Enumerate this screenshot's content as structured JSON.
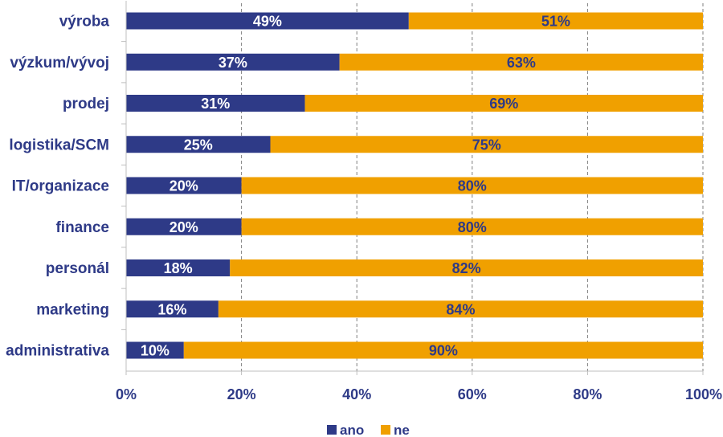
{
  "colors": {
    "ano": "#2E3A87",
    "ne": "#F0A000",
    "text": "#2E3A87",
    "grid": "#7f7f7f",
    "axis": "#bfbfbf",
    "label_on_dark": "#ffffff",
    "label_on_light": "#2E3A87"
  },
  "chart_data": {
    "type": "bar",
    "orientation": "horizontal",
    "stacked": true,
    "categories": [
      "výroba",
      "výzkum/vývoj",
      "prodej",
      "logistika/SCM",
      "IT/organizace",
      "finance",
      "personál",
      "marketing",
      "administrativa"
    ],
    "series": [
      {
        "name": "ano",
        "values": [
          49,
          37,
          31,
          25,
          20,
          20,
          18,
          16,
          10
        ],
        "labels": [
          "49%",
          "37%",
          "31%",
          "25%",
          "20%",
          "20%",
          "18%",
          "16%",
          "10%"
        ]
      },
      {
        "name": "ne",
        "values": [
          51,
          63,
          69,
          75,
          80,
          80,
          82,
          84,
          90
        ],
        "labels": [
          "51%",
          "63%",
          "69%",
          "75%",
          "80%",
          "80%",
          "82%",
          "84%",
          "90%"
        ]
      }
    ],
    "xlim": [
      0,
      100
    ],
    "x_ticks": [
      0,
      20,
      40,
      60,
      80,
      100
    ],
    "x_tick_labels": [
      "0%",
      "20%",
      "40%",
      "60%",
      "80%",
      "100%"
    ],
    "grid": "vertical dashed",
    "legend_position": "bottom"
  }
}
